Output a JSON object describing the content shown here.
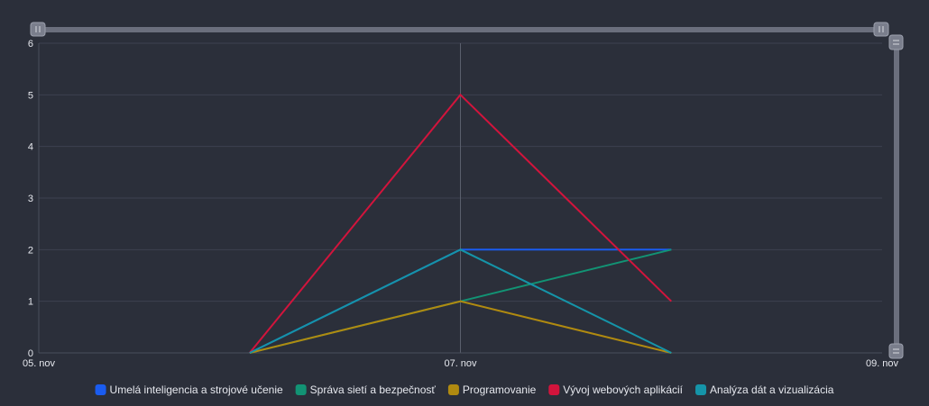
{
  "chart_data": {
    "type": "line",
    "title": "",
    "xlabel": "",
    "ylabel": "",
    "x_tick_labels": [
      "05. nov",
      "07. nov",
      "09. nov"
    ],
    "x_domain": [
      "2024-11-05",
      "2024-11-09"
    ],
    "x": [
      "2024-11-06",
      "2024-11-07",
      "2024-11-08"
    ],
    "ylim": [
      0,
      6
    ],
    "y_ticks": [
      0,
      1,
      2,
      3,
      4,
      5,
      6
    ],
    "grid": true,
    "legend_position": "bottom",
    "series": [
      {
        "name": "Umelá inteligencia a strojové učenie",
        "color": "#1a5cf0",
        "values": [
          0,
          2,
          2
        ]
      },
      {
        "name": "Správa sietí a bezpečnosť",
        "color": "#129374",
        "values": [
          0,
          1,
          2
        ]
      },
      {
        "name": "Programovanie",
        "color": "#b08a10",
        "values": [
          0,
          1,
          0
        ]
      },
      {
        "name": "Vývoj webových aplikácií",
        "color": "#d2143c",
        "values": [
          0,
          5,
          1
        ]
      },
      {
        "name": "Analýza dát a vizualizácia",
        "color": "#1594a8",
        "values": [
          0,
          2,
          0
        ]
      }
    ],
    "crosshair_x": "2024-11-07"
  }
}
